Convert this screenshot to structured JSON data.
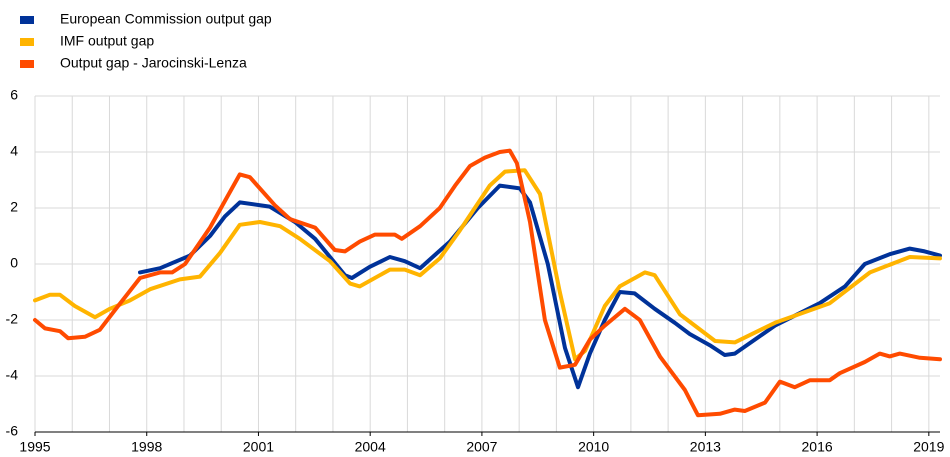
{
  "chart_data": {
    "type": "line",
    "xlim": [
      1995,
      2019.3
    ],
    "xticks": [
      1995,
      1998,
      2001,
      2004,
      2007,
      2010,
      2013,
      2016,
      2019
    ],
    "xgrid": [
      1995,
      1996,
      1997,
      1998,
      1999,
      2000,
      2001,
      2002,
      2003,
      2004,
      2005,
      2006,
      2007,
      2008,
      2009,
      2010,
      2011,
      2012,
      2013,
      2014,
      2015,
      2016,
      2017,
      2018,
      2019
    ],
    "ylim": [
      -6,
      6
    ],
    "yticks": [
      -6,
      -4,
      -2,
      0,
      2,
      4,
      6
    ],
    "grid": true,
    "legend": "top-left",
    "series": [
      {
        "name": "European Commission output gap",
        "color": "#003299",
        "x": [
          1997.82,
          1998.36,
          1999.16,
          1999.7,
          2000.1,
          2000.5,
          2001.3,
          2001.98,
          2002.52,
          2003.32,
          2003.51,
          2003.99,
          2004.53,
          2004.93,
          2005.34,
          2006.14,
          2006.89,
          2007.48,
          2008.02,
          2008.29,
          2008.77,
          2009.23,
          2009.58,
          2009.9,
          2010.3,
          2010.7,
          2011.1,
          2011.64,
          2012.18,
          2012.58,
          2013.12,
          2013.52,
          2013.79,
          2014.87,
          2016.07,
          2016.75,
          2017.28,
          2017.95,
          2018.49,
          2018.89,
          2019.3
        ],
        "values": [
          -0.3,
          -0.15,
          0.3,
          1.0,
          1.7,
          2.2,
          2.05,
          1.5,
          0.9,
          -0.4,
          -0.5,
          -0.1,
          0.25,
          0.1,
          -0.15,
          0.8,
          2.0,
          2.8,
          2.7,
          2.2,
          0,
          -3.0,
          -4.4,
          -3.2,
          -2.0,
          -1.0,
          -1.05,
          -1.6,
          -2.1,
          -2.5,
          -2.9,
          -3.25,
          -3.2,
          -2.2,
          -1.4,
          -0.8,
          0.0,
          0.35,
          0.55,
          0.45,
          0.3
        ]
      },
      {
        "name": "IMF output gap",
        "color": "#ffb400",
        "x": [
          1995,
          1995.4,
          1995.67,
          1996.07,
          1996.61,
          1997.01,
          1997.55,
          1998.09,
          1998.89,
          1999.43,
          1999.97,
          2000.5,
          2001.04,
          2001.58,
          2002.11,
          2002.92,
          2003.46,
          2003.72,
          2004.53,
          2004.93,
          2005.34,
          2005.87,
          2006.41,
          2007.21,
          2007.62,
          2008.15,
          2008.56,
          2009.09,
          2009.5,
          2009.77,
          2010.3,
          2010.7,
          2011.38,
          2011.64,
          2012.32,
          2013.26,
          2013.79,
          2014.87,
          2016.34,
          2017.42,
          2018.49,
          2019.3
        ],
        "values": [
          -1.3,
          -1.1,
          -1.1,
          -1.5,
          -1.9,
          -1.6,
          -1.3,
          -0.9,
          -0.55,
          -0.45,
          0.4,
          1.4,
          1.5,
          1.35,
          0.9,
          0.1,
          -0.7,
          -0.8,
          -0.2,
          -0.2,
          -0.4,
          0.2,
          1.2,
          2.8,
          3.3,
          3.35,
          2.5,
          -1.0,
          -3.4,
          -3.1,
          -1.5,
          -0.8,
          -0.3,
          -0.4,
          -1.8,
          -2.75,
          -2.8,
          -2.1,
          -1.4,
          -0.3,
          0.25,
          0.2
        ]
      },
      {
        "name": "Output gap - Jarocinski-Lenza",
        "color": "#ff4b00",
        "x": [
          1995,
          1995.27,
          1995.67,
          1995.89,
          1996.34,
          1996.74,
          1997.23,
          1997.82,
          1998.36,
          1998.68,
          1999.03,
          1999.7,
          2000.5,
          2000.77,
          2001.44,
          2001.85,
          2002.52,
          2003.05,
          2003.32,
          2003.72,
          2004.13,
          2004.66,
          2004.85,
          2005.34,
          2005.87,
          2006.28,
          2006.68,
          2007.08,
          2007.48,
          2007.75,
          2007.94,
          2008.29,
          2008.69,
          2009.09,
          2009.5,
          2009.9,
          2010.3,
          2010.84,
          2011.24,
          2011.78,
          2012.45,
          2012.8,
          2013.39,
          2013.79,
          2014.06,
          2014.6,
          2015,
          2015.4,
          2015.81,
          2016.34,
          2016.61,
          2017.28,
          2017.68,
          2017.95,
          2018.22,
          2018.76,
          2019.3
        ],
        "values": [
          -2.0,
          -2.3,
          -2.4,
          -2.65,
          -2.6,
          -2.35,
          -1.5,
          -0.5,
          -0.3,
          -0.3,
          0.0,
          1.3,
          3.2,
          3.1,
          2.1,
          1.6,
          1.3,
          0.5,
          0.45,
          0.8,
          1.05,
          1.05,
          0.9,
          1.35,
          2.0,
          2.8,
          3.5,
          3.8,
          4.0,
          4.05,
          3.6,
          1.5,
          -2.0,
          -3.7,
          -3.6,
          -2.7,
          -2.2,
          -1.6,
          -2.0,
          -3.3,
          -4.5,
          -5.4,
          -5.35,
          -5.2,
          -5.25,
          -4.95,
          -4.2,
          -4.4,
          -4.15,
          -4.15,
          -3.9,
          -3.5,
          -3.2,
          -3.3,
          -3.2,
          -3.35,
          -3.4
        ]
      }
    ]
  }
}
